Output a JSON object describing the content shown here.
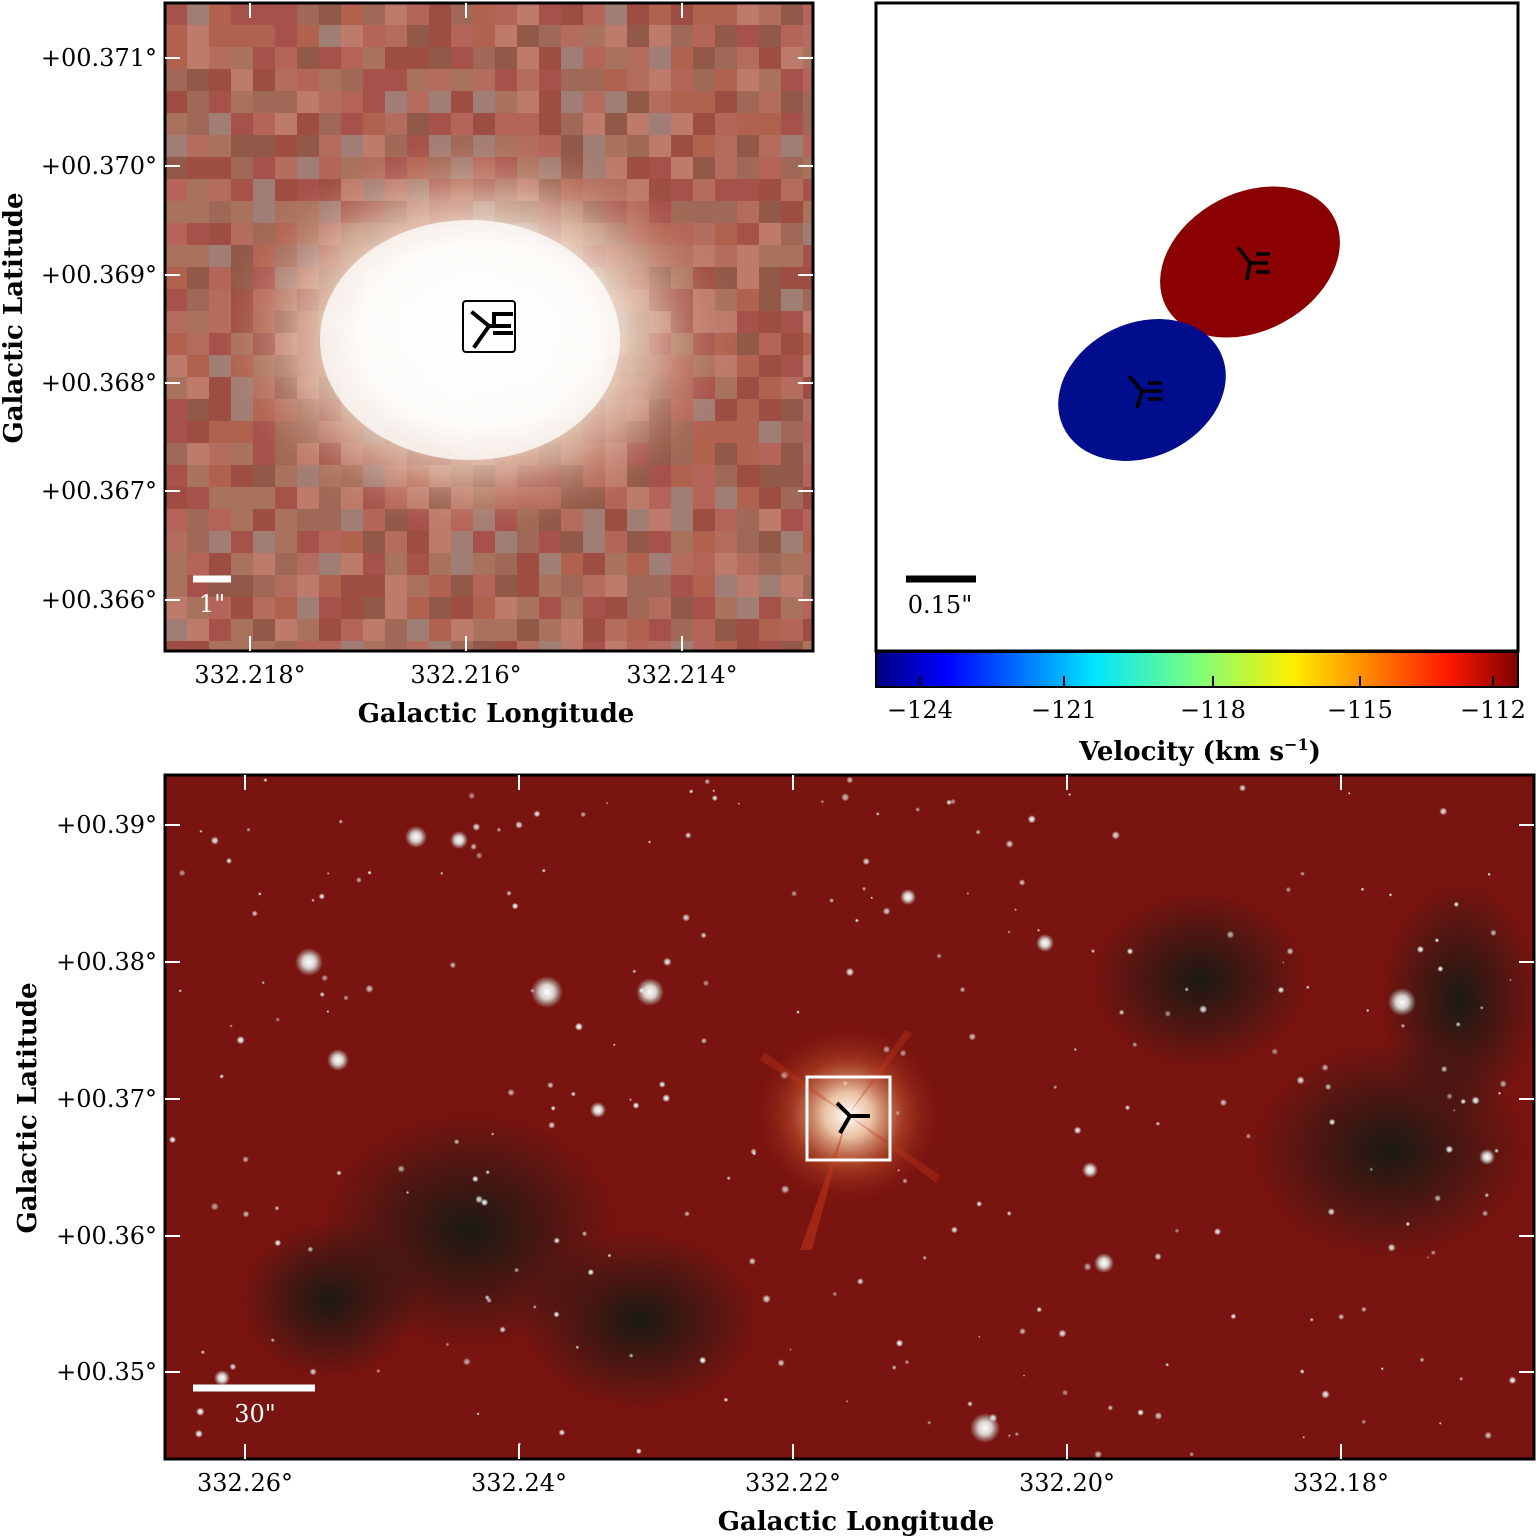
{
  "panels": {
    "zoom": {
      "xlabel": "Galactic Longitude",
      "ylabel": "Galactic Latitude",
      "xticks": [
        "332.218°",
        "332.216°",
        "332.214°"
      ],
      "yticks": [
        "+00.371°",
        "+00.370°",
        "+00.369°",
        "+00.368°",
        "+00.367°",
        "+00.366°"
      ],
      "scalebar_label": "1\"",
      "marker_symbol": "three-pointed-star-icon"
    },
    "maser": {
      "scalebar_label": "0.15\"",
      "spots": [
        {
          "color": "#8b0000",
          "velocity": -112
        },
        {
          "color": "#000d8c",
          "velocity": -124
        }
      ],
      "colorbar": {
        "label": "Velocity (km s",
        "label_exp": "−1",
        "label_close": ")",
        "ticks": [
          "−124",
          "−121",
          "−118",
          "−115",
          "−112"
        ],
        "range": [
          -124.5,
          -111.6
        ],
        "colormap": "jet"
      }
    },
    "wide": {
      "xlabel": "Galactic Longitude",
      "ylabel": "Galactic Latitude",
      "xticks": [
        "332.26°",
        "332.24°",
        "332.22°",
        "332.20°",
        "332.18°"
      ],
      "yticks": [
        "+00.39°",
        "+00.38°",
        "+00.37°",
        "+00.36°",
        "+00.35°"
      ],
      "scalebar_label": "30\"",
      "background_color": "#7a1410"
    }
  }
}
